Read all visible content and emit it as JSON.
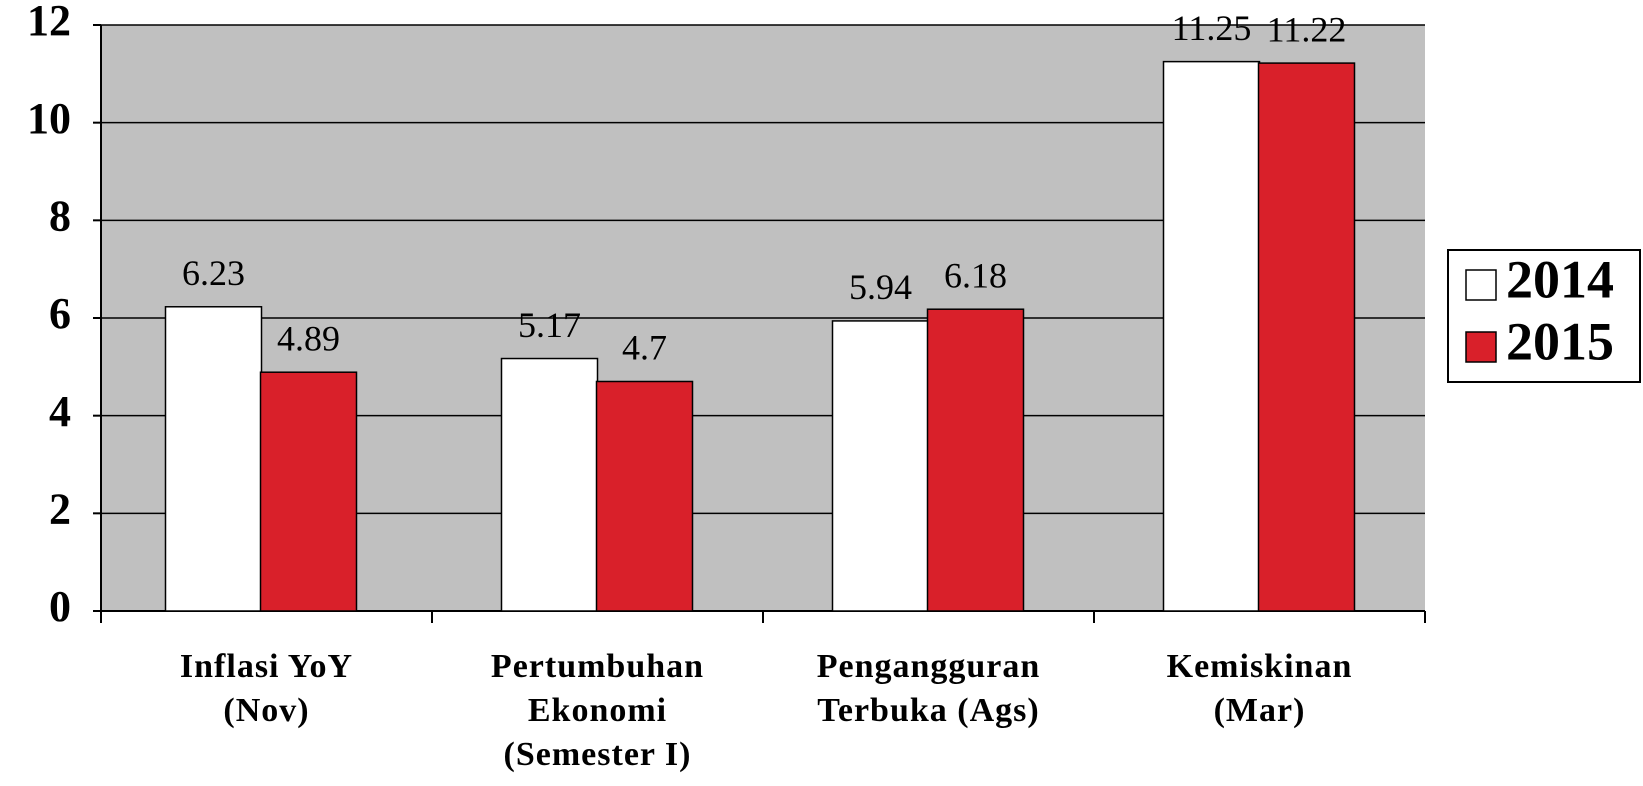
{
  "chart_data": {
    "type": "bar",
    "categories": [
      "Inflasi YoY (Nov)",
      "Pertumbuhan Ekonomi (Semester I)",
      "Pengangguran Terbuka (Ags)",
      "Kemiskinan (Mar)"
    ],
    "series": [
      {
        "name": "2014",
        "color": "#ffffff",
        "values": [
          6.23,
          5.17,
          5.94,
          11.25
        ]
      },
      {
        "name": "2015",
        "color": "#d9202a",
        "values": [
          4.89,
          4.7,
          6.18,
          11.22
        ]
      }
    ],
    "ylim": [
      0,
      12
    ],
    "yticks": [
      0,
      2,
      4,
      6,
      8,
      10,
      12
    ],
    "grid": true,
    "legend": "right"
  }
}
